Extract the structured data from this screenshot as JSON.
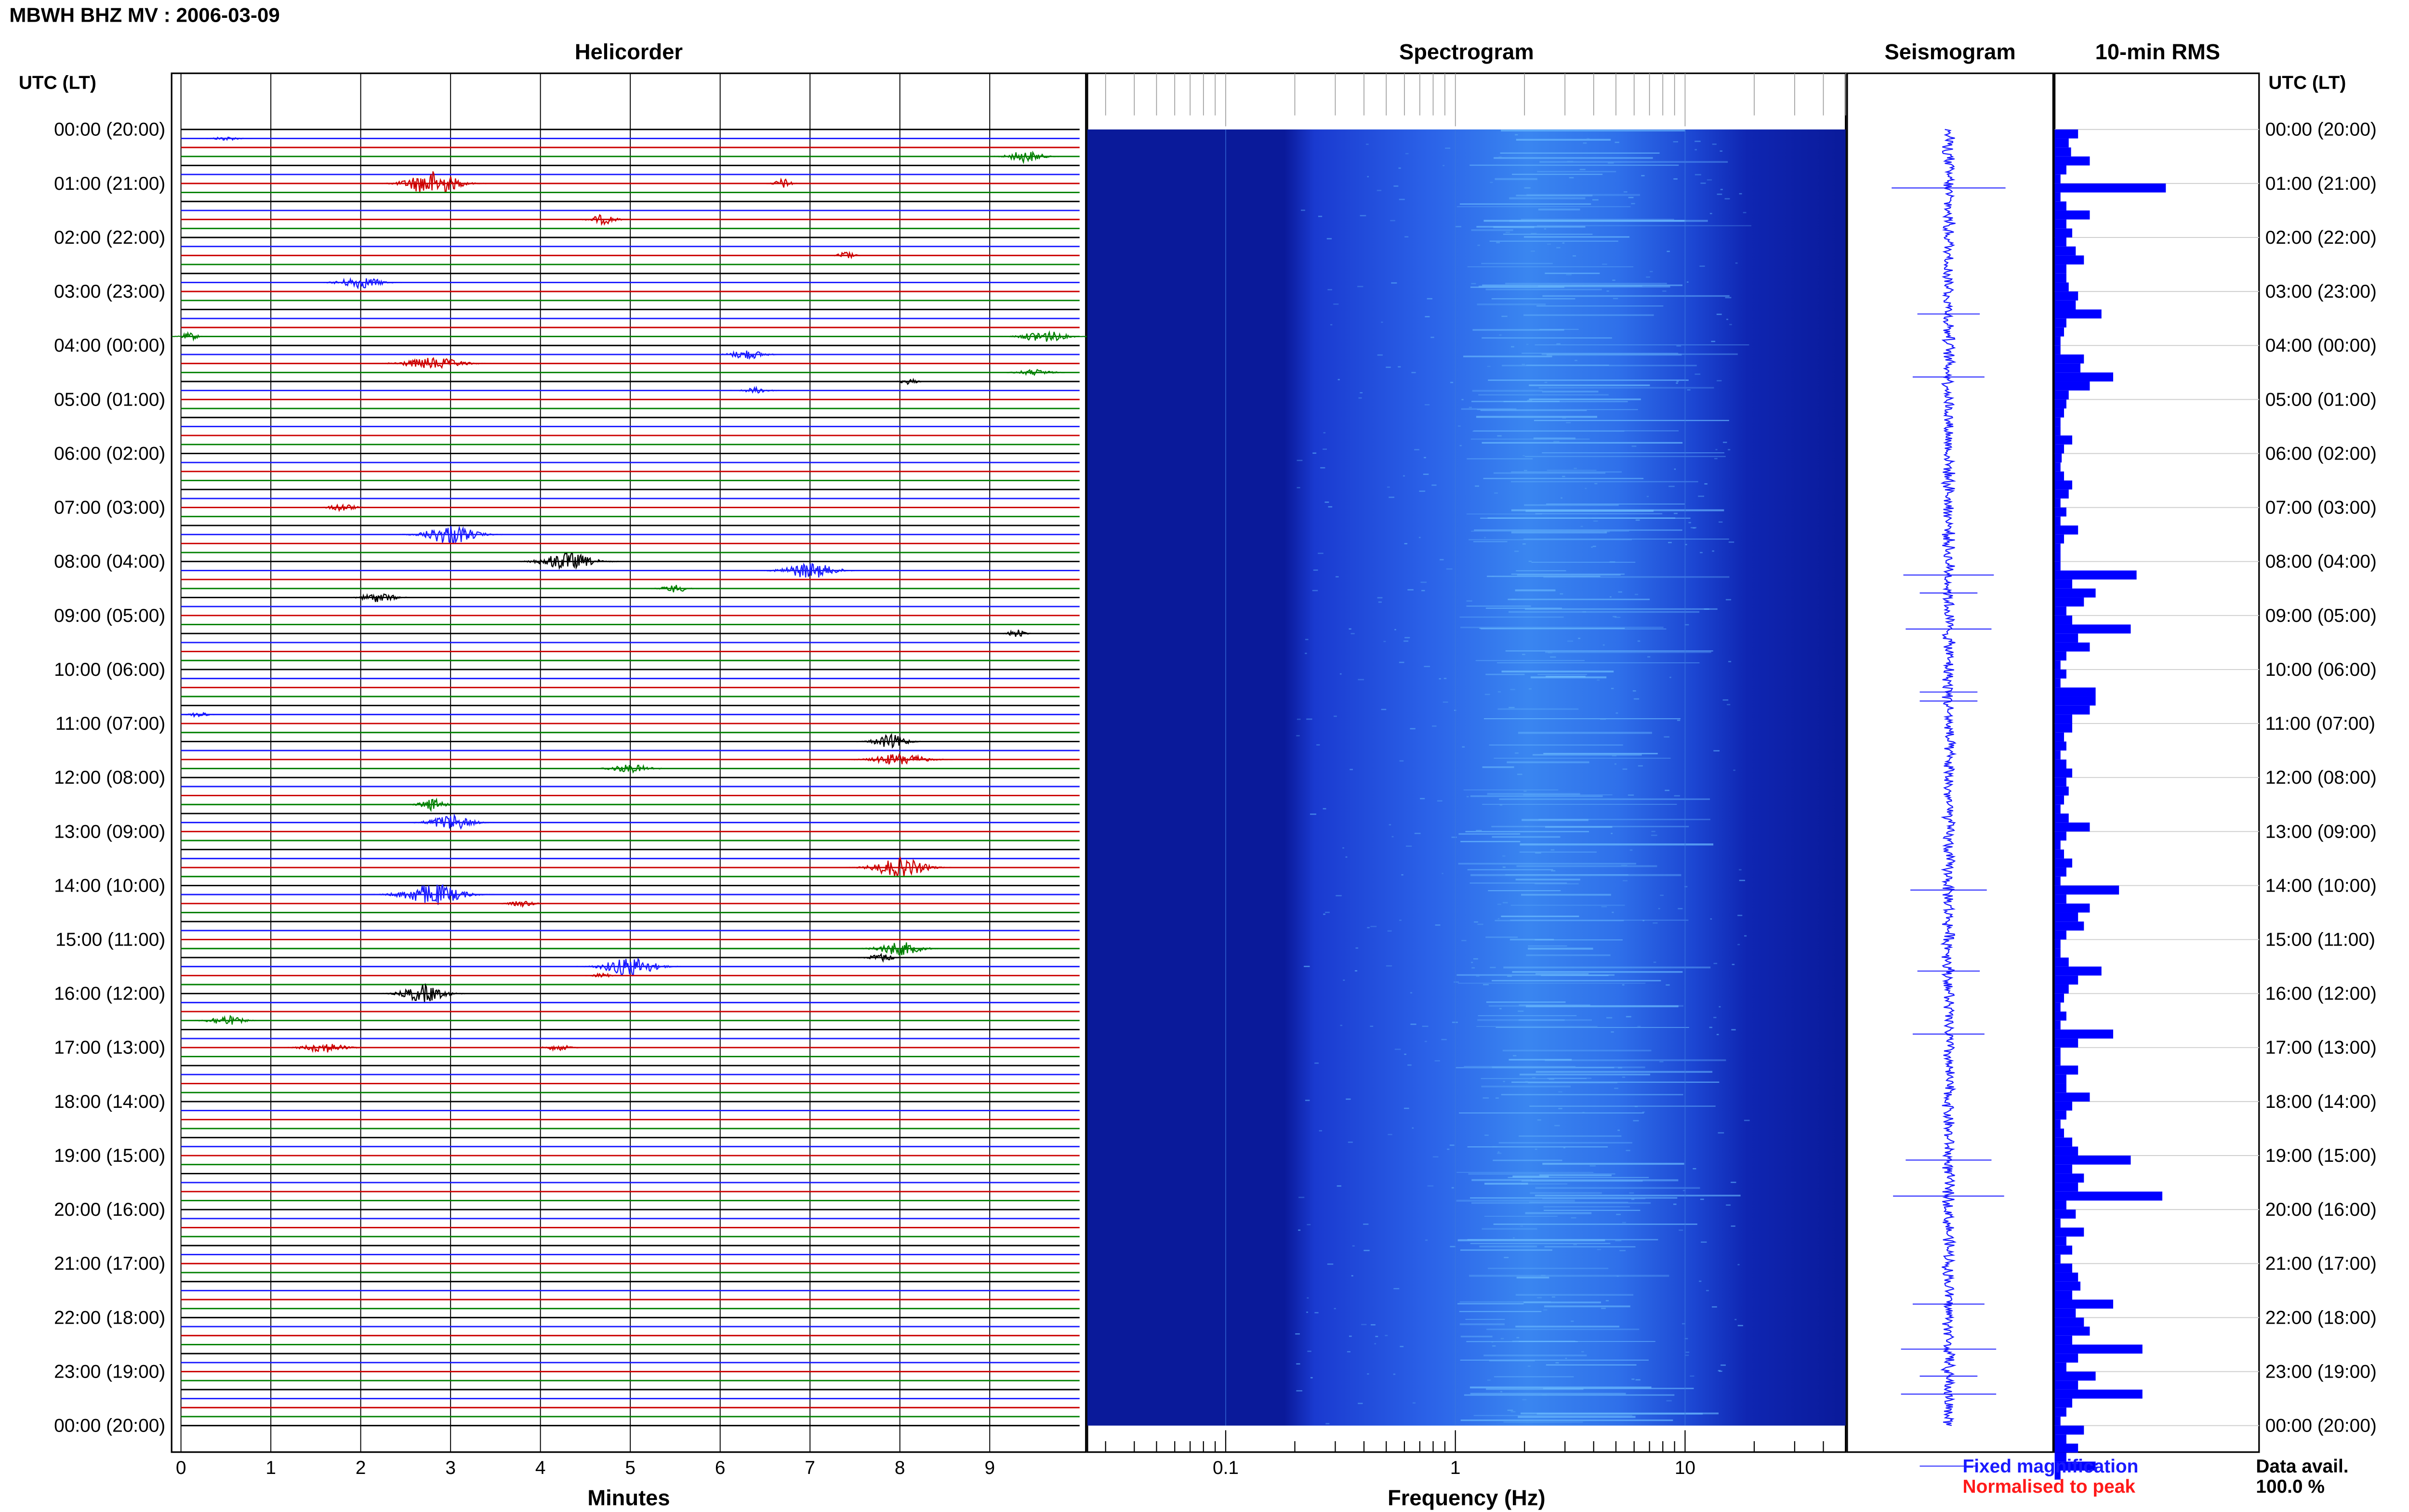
{
  "header": {
    "title": "MBWH BHZ MV : 2006-03-09"
  },
  "panels": {
    "helicorder_title": "Helicorder",
    "spectrogram_title": "Spectrogram",
    "seismogram_title": "Seismogram",
    "rms_title": "10-min RMS",
    "utc_head_left": "UTC (LT)",
    "utc_head_right": "UTC (LT)",
    "helicorder_xlabel": "Minutes",
    "spectrogram_xlabel": "Frequency (Hz)"
  },
  "legend": {
    "fixed": "Fixed magnification",
    "normalised": "Normalised to peak",
    "avail_label": "Data avail.",
    "avail_value": "100.0 %"
  },
  "colors": {
    "trace_cycle": [
      "#000000",
      "#1a1aff",
      "#cc0000",
      "#008000"
    ],
    "spectrogram_base": "#0a1a9a",
    "spectrogram_bright": "#4aa8ff",
    "rms_bar": "#0000ff",
    "seismogram": "#1a1aff"
  },
  "chart_data": [
    {
      "type": "heatmap",
      "panel": "helicorder",
      "title": "Helicorder",
      "xlabel": "Minutes",
      "x_ticks": [
        "0",
        "1",
        "2",
        "3",
        "4",
        "5",
        "6",
        "7",
        "8",
        "9"
      ],
      "xlim": [
        0,
        10
      ],
      "y_labels": [
        "00:00 (20:00)",
        "01:00 (21:00)",
        "02:00 (22:00)",
        "03:00 (23:00)",
        "04:00 (00:00)",
        "05:00 (01:00)",
        "06:00 (02:00)",
        "07:00 (03:00)",
        "08:00 (04:00)",
        "09:00 (05:00)",
        "10:00 (06:00)",
        "11:00 (07:00)",
        "12:00 (08:00)",
        "13:00 (09:00)",
        "14:00 (10:00)",
        "15:00 (11:00)",
        "16:00 (12:00)",
        "17:00 (13:00)",
        "18:00 (14:00)",
        "19:00 (15:00)",
        "20:00 (16:00)",
        "21:00 (17:00)",
        "22:00 (18:00)",
        "23:00 (19:00)",
        "00:00 (20:00)"
      ],
      "traces_per_hour": 6,
      "events": [
        {
          "row": 1,
          "minute": 0.5,
          "amp": 0.2,
          "width": 0.3
        },
        {
          "row": 3,
          "minute": 9.4,
          "amp": 0.6,
          "width": 0.4
        },
        {
          "row": 6,
          "minute": 2.8,
          "amp": 1.3,
          "width": 0.6
        },
        {
          "row": 6,
          "minute": 6.7,
          "amp": 0.5,
          "width": 0.2
        },
        {
          "row": 10,
          "minute": 4.7,
          "amp": 0.5,
          "width": 0.3
        },
        {
          "row": 14,
          "minute": 7.4,
          "amp": 0.4,
          "width": 0.2
        },
        {
          "row": 17,
          "minute": 2.0,
          "amp": 0.6,
          "width": 0.5
        },
        {
          "row": 23,
          "minute": 0.1,
          "amp": 0.4,
          "width": 0.2
        },
        {
          "row": 23,
          "minute": 9.6,
          "amp": 0.6,
          "width": 0.5
        },
        {
          "row": 25,
          "minute": 6.3,
          "amp": 0.5,
          "width": 0.4
        },
        {
          "row": 26,
          "minute": 2.8,
          "amp": 0.6,
          "width": 0.7
        },
        {
          "row": 27,
          "minute": 9.5,
          "amp": 0.3,
          "width": 0.4
        },
        {
          "row": 28,
          "minute": 8.1,
          "amp": 0.3,
          "width": 0.2
        },
        {
          "row": 29,
          "minute": 6.4,
          "amp": 0.3,
          "width": 0.3
        },
        {
          "row": 42,
          "minute": 1.8,
          "amp": 0.4,
          "width": 0.3
        },
        {
          "row": 45,
          "minute": 3.0,
          "amp": 1.0,
          "width": 0.6
        },
        {
          "row": 48,
          "minute": 4.3,
          "amp": 0.9,
          "width": 0.6
        },
        {
          "row": 49,
          "minute": 7.0,
          "amp": 0.8,
          "width": 0.6
        },
        {
          "row": 51,
          "minute": 5.5,
          "amp": 0.4,
          "width": 0.3
        },
        {
          "row": 52,
          "minute": 2.2,
          "amp": 0.5,
          "width": 0.4
        },
        {
          "row": 56,
          "minute": 9.3,
          "amp": 0.4,
          "width": 0.2
        },
        {
          "row": 65,
          "minute": 0.2,
          "amp": 0.3,
          "width": 0.2
        },
        {
          "row": 68,
          "minute": 7.9,
          "amp": 0.7,
          "width": 0.4
        },
        {
          "row": 70,
          "minute": 8.0,
          "amp": 0.6,
          "width": 0.6
        },
        {
          "row": 71,
          "minute": 5.0,
          "amp": 0.4,
          "width": 0.5
        },
        {
          "row": 75,
          "minute": 2.8,
          "amp": 0.6,
          "width": 0.3
        },
        {
          "row": 77,
          "minute": 3.0,
          "amp": 0.8,
          "width": 0.5
        },
        {
          "row": 82,
          "minute": 8.0,
          "amp": 1.0,
          "width": 0.6
        },
        {
          "row": 85,
          "minute": 2.8,
          "amp": 1.1,
          "width": 0.7
        },
        {
          "row": 86,
          "minute": 3.8,
          "amp": 0.3,
          "width": 0.3
        },
        {
          "row": 91,
          "minute": 8.0,
          "amp": 0.7,
          "width": 0.5
        },
        {
          "row": 92,
          "minute": 7.8,
          "amp": 0.4,
          "width": 0.3
        },
        {
          "row": 93,
          "minute": 5.0,
          "amp": 1.0,
          "width": 0.6
        },
        {
          "row": 94,
          "minute": 4.7,
          "amp": 0.3,
          "width": 0.2
        },
        {
          "row": 96,
          "minute": 2.7,
          "amp": 0.9,
          "width": 0.5
        },
        {
          "row": 99,
          "minute": 0.5,
          "amp": 0.5,
          "width": 0.4
        },
        {
          "row": 102,
          "minute": 1.6,
          "amp": 0.5,
          "width": 0.5
        },
        {
          "row": 102,
          "minute": 4.2,
          "amp": 0.3,
          "width": 0.3
        }
      ]
    },
    {
      "type": "heatmap",
      "panel": "spectrogram",
      "title": "Spectrogram",
      "xlabel": "Frequency (Hz)",
      "x_scale": "log",
      "xlim": [
        0.025,
        50
      ],
      "x_ticks": [
        0.1,
        1,
        10
      ],
      "x_tick_labels": [
        "0.1",
        "1",
        "10"
      ],
      "energy_band_hz": [
        0.2,
        30
      ],
      "peak_band_hz": [
        1,
        10
      ]
    },
    {
      "type": "line",
      "panel": "seismogram",
      "title": "Seismogram"
    },
    {
      "type": "bar",
      "panel": "rms",
      "title": "10-min RMS",
      "orientation": "horizontal",
      "xlim": [
        0,
        1
      ],
      "values": [
        0.2,
        0.12,
        0.14,
        0.3,
        0.1,
        0.05,
        0.95,
        0.05,
        0.1,
        0.3,
        0.1,
        0.15,
        0.1,
        0.18,
        0.25,
        0.1,
        0.1,
        0.12,
        0.2,
        0.18,
        0.4,
        0.1,
        0.08,
        0.05,
        0.05,
        0.25,
        0.22,
        0.5,
        0.3,
        0.12,
        0.1,
        0.08,
        0.05,
        0.05,
        0.15,
        0.08,
        0.06,
        0.05,
        0.08,
        0.15,
        0.12,
        0.05,
        0.1,
        0.05,
        0.2,
        0.08,
        0.05,
        0.05,
        0.05,
        0.7,
        0.15,
        0.35,
        0.25,
        0.1,
        0.15,
        0.65,
        0.2,
        0.3,
        0.1,
        0.05,
        0.1,
        0.05,
        0.35,
        0.35,
        0.3,
        0.15,
        0.15,
        0.08,
        0.1,
        0.05,
        0.1,
        0.15,
        0.1,
        0.12,
        0.08,
        0.05,
        0.12,
        0.3,
        0.1,
        0.05,
        0.08,
        0.15,
        0.1,
        0.05,
        0.55,
        0.1,
        0.3,
        0.2,
        0.25,
        0.1,
        0.05,
        0.05,
        0.12,
        0.4,
        0.2,
        0.12,
        0.08,
        0.05,
        0.1,
        0.05,
        0.5,
        0.2,
        0.05,
        0.05,
        0.2,
        0.1,
        0.1,
        0.3,
        0.15,
        0.1,
        0.05,
        0.08,
        0.15,
        0.2,
        0.65,
        0.15,
        0.25,
        0.2,
        0.92,
        0.1,
        0.18,
        0.05,
        0.25,
        0.1,
        0.15,
        0.05,
        0.15,
        0.2,
        0.22,
        0.15,
        0.5,
        0.18,
        0.25,
        0.3,
        0.15,
        0.75,
        0.2,
        0.1,
        0.35,
        0.2,
        0.75,
        0.15,
        0.1,
        0.05,
        0.25,
        0.1,
        0.2,
        0.1,
        0.35,
        0.05
      ]
    }
  ]
}
